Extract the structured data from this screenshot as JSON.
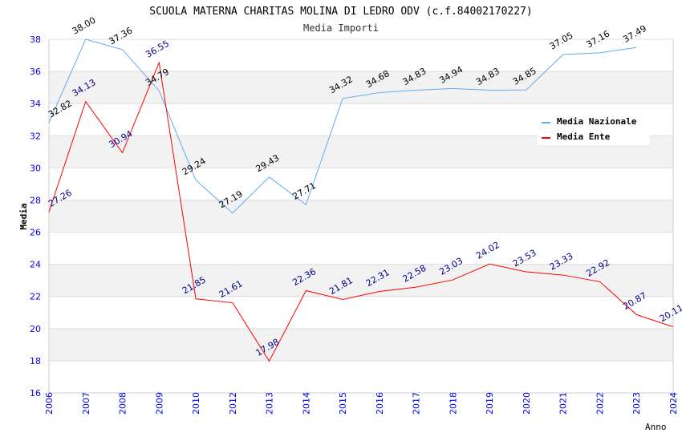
{
  "chart_data": {
    "type": "line",
    "title": "SCUOLA MATERNA CHARITAS MOLINA DI LEDRO ODV (c.f.84002170227)",
    "subtitle": "Media Importi",
    "xlabel": "Anno",
    "ylabel": "Media",
    "ylim": [
      16,
      38
    ],
    "yticks": [
      "16",
      "18",
      "20",
      "22",
      "24",
      "26",
      "28",
      "30",
      "32",
      "34",
      "36",
      "38"
    ],
    "categories": [
      "2006",
      "2007",
      "2008",
      "2009",
      "2010",
      "2012",
      "2013",
      "2014",
      "2015",
      "2016",
      "2017",
      "2018",
      "2019",
      "2020",
      "2021",
      "2022",
      "2023",
      "2024"
    ],
    "grid": true,
    "legend_position": "top-right",
    "series": [
      {
        "name": "Media Nazionale",
        "color": "#66aaee",
        "label_color": "#000000",
        "values": [
          32.82,
          38.0,
          37.36,
          34.79,
          29.24,
          27.19,
          29.43,
          27.71,
          34.32,
          34.68,
          34.83,
          34.94,
          34.83,
          34.85,
          37.05,
          37.16,
          37.49,
          null
        ]
      },
      {
        "name": "Media Ente",
        "color": "#ff0000",
        "label_color": "#000088",
        "values": [
          27.26,
          34.13,
          30.94,
          36.55,
          21.85,
          21.61,
          17.98,
          22.36,
          21.81,
          22.31,
          22.58,
          23.03,
          24.02,
          23.53,
          23.33,
          22.92,
          20.87,
          20.11
        ]
      }
    ]
  }
}
